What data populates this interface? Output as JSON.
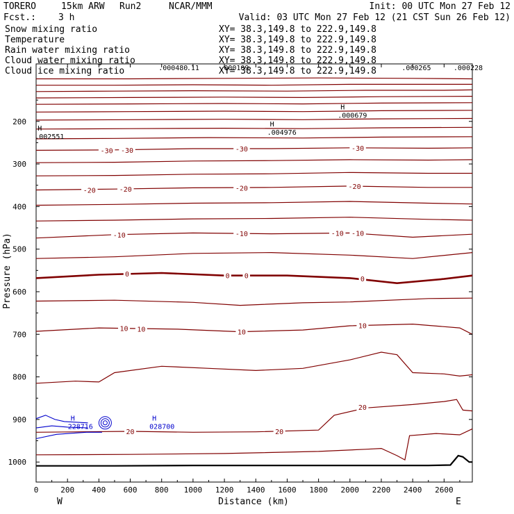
{
  "header": {
    "model": "TORERO",
    "resolution": "15km ARW",
    "run": "Run2",
    "org": "NCAR/MMM",
    "init": "Init: 00 UTC Mon 27 Feb 12",
    "fcst_label": "Fcst.:",
    "fcst_value": "3 h",
    "valid": "Valid: 03 UTC Mon 27 Feb 12 (21 CST Sun 26 Feb 12)"
  },
  "fields": [
    {
      "name": "Snow mixing ratio",
      "color": "#000000",
      "xy": "XY=  38.3,149.8 to 222.9,149.8"
    },
    {
      "name": "Temperature",
      "color": "#cc0000",
      "xy": "XY=  38.3,149.8 to 222.9,149.8"
    },
    {
      "name": "Rain water mixing ratio",
      "color": "#cc0000",
      "xy": "XY=  38.3,149.8 to 222.9,149.8"
    },
    {
      "name": "Cloud water mixing ratio",
      "color": "#0000cc",
      "xy": "XY=  38.3,149.8 to 222.9,149.8"
    },
    {
      "name": "Cloud ice mixing ratio",
      "color": "#000000",
      "xy": "XY=  38.3,149.8 to 222.9,149.8"
    }
  ],
  "colors": {
    "temperature": "#800000",
    "cloud_water": "#0000cc",
    "terrain": "#000000"
  },
  "chart_data": {
    "type": "cross-section",
    "xlabel": "Distance (km)",
    "ylabel": "Pressure (hPa)",
    "xlim": [
      0,
      2780
    ],
    "ylim": [
      1047,
      65
    ],
    "x_ticks": [
      0,
      200,
      400,
      600,
      800,
      1000,
      1200,
      1400,
      1600,
      1800,
      2000,
      2200,
      2400,
      2600
    ],
    "y_ticks": [
      200,
      300,
      400,
      500,
      600,
      700,
      800,
      900,
      1000
    ],
    "west_label": "W",
    "east_label": "E",
    "temperature_contours": [
      {
        "level": "",
        "pts": [
          [
            0,
            100
          ],
          [
            600,
            100
          ],
          [
            1200,
            99
          ],
          [
            1800,
            98
          ],
          [
            2400,
            99
          ],
          [
            2780,
            100
          ]
        ]
      },
      {
        "level": "",
        "pts": [
          [
            0,
            115
          ],
          [
            500,
            115
          ],
          [
            1000,
            114
          ],
          [
            1500,
            115
          ],
          [
            2000,
            113
          ],
          [
            2500,
            113
          ],
          [
            2780,
            113
          ]
        ]
      },
      {
        "level": "",
        "pts": [
          [
            0,
            130
          ],
          [
            500,
            129
          ],
          [
            1000,
            128
          ],
          [
            1600,
            129
          ],
          [
            2100,
            127
          ],
          [
            2600,
            127
          ],
          [
            2780,
            126
          ]
        ]
      },
      {
        "level": "",
        "pts": [
          [
            0,
            145
          ],
          [
            600,
            144
          ],
          [
            1200,
            143
          ],
          [
            1700,
            144
          ],
          [
            2200,
            142
          ],
          [
            2780,
            141
          ]
        ]
      },
      {
        "level": "",
        "pts": [
          [
            0,
            160
          ],
          [
            600,
            159
          ],
          [
            1200,
            158
          ],
          [
            1700,
            159
          ],
          [
            2200,
            157
          ],
          [
            2780,
            156
          ]
        ]
      },
      {
        "level": "",
        "pts": [
          [
            0,
            178
          ],
          [
            600,
            177
          ],
          [
            1200,
            176
          ],
          [
            1700,
            177
          ],
          [
            2200,
            175
          ],
          [
            2780,
            174
          ]
        ]
      },
      {
        "level": "",
        "pts": [
          [
            0,
            197
          ],
          [
            600,
            196
          ],
          [
            1200,
            195
          ],
          [
            1700,
            196
          ],
          [
            2200,
            194
          ],
          [
            2780,
            193
          ]
        ]
      },
      {
        "level": "",
        "pts": [
          [
            0,
            218
          ],
          [
            600,
            217
          ],
          [
            1200,
            216
          ],
          [
            1700,
            217
          ],
          [
            2200,
            215
          ],
          [
            2780,
            214
          ]
        ]
      },
      {
        "level": "",
        "pts": [
          [
            0,
            241
          ],
          [
            500,
            240
          ],
          [
            1100,
            238
          ],
          [
            1700,
            239
          ],
          [
            2200,
            237
          ],
          [
            2780,
            236
          ]
        ]
      },
      {
        "level": "-30",
        "pts": [
          [
            0,
            268
          ],
          [
            500,
            267
          ],
          [
            1000,
            264
          ],
          [
            1500,
            264
          ],
          [
            2000,
            262
          ],
          [
            2500,
            263
          ],
          [
            2780,
            262
          ]
        ]
      },
      {
        "level": "",
        "pts": [
          [
            0,
            297
          ],
          [
            500,
            296
          ],
          [
            1000,
            293
          ],
          [
            1500,
            292
          ],
          [
            2000,
            290
          ],
          [
            2500,
            291
          ],
          [
            2780,
            290
          ]
        ]
      },
      {
        "level": "",
        "pts": [
          [
            0,
            328
          ],
          [
            500,
            327
          ],
          [
            1000,
            324
          ],
          [
            1500,
            323
          ],
          [
            2000,
            320
          ],
          [
            2500,
            322
          ],
          [
            2780,
            322
          ]
        ]
      },
      {
        "level": "-20",
        "pts": [
          [
            0,
            361
          ],
          [
            500,
            359
          ],
          [
            1000,
            356
          ],
          [
            1500,
            355
          ],
          [
            2000,
            352
          ],
          [
            2500,
            355
          ],
          [
            2780,
            355
          ]
        ]
      },
      {
        "level": "",
        "pts": [
          [
            0,
            397
          ],
          [
            500,
            395
          ],
          [
            1000,
            392
          ],
          [
            1500,
            391
          ],
          [
            2000,
            388
          ],
          [
            2500,
            392
          ],
          [
            2780,
            394
          ]
        ]
      },
      {
        "level": "",
        "pts": [
          [
            0,
            434
          ],
          [
            500,
            432
          ],
          [
            1000,
            429
          ],
          [
            1500,
            428
          ],
          [
            2000,
            425
          ],
          [
            2500,
            430
          ],
          [
            2780,
            432
          ]
        ]
      },
      {
        "level": "-10",
        "pts": [
          [
            0,
            474
          ],
          [
            500,
            466
          ],
          [
            1000,
            462
          ],
          [
            1500,
            464
          ],
          [
            2000,
            462
          ],
          [
            2400,
            472
          ],
          [
            2780,
            465
          ]
        ]
      },
      {
        "level": "",
        "pts": [
          [
            0,
            522
          ],
          [
            500,
            518
          ],
          [
            1000,
            510
          ],
          [
            1500,
            508
          ],
          [
            2000,
            514
          ],
          [
            2400,
            522
          ],
          [
            2780,
            508
          ]
        ]
      },
      {
        "level": "0",
        "bold": true,
        "pts": [
          [
            0,
            568
          ],
          [
            400,
            560
          ],
          [
            800,
            556
          ],
          [
            1200,
            562
          ],
          [
            1600,
            562
          ],
          [
            2000,
            568
          ],
          [
            2300,
            580
          ],
          [
            2600,
            570
          ],
          [
            2780,
            562
          ]
        ]
      },
      {
        "level": "",
        "pts": [
          [
            0,
            622
          ],
          [
            500,
            620
          ],
          [
            1000,
            625
          ],
          [
            1300,
            632
          ],
          [
            1700,
            626
          ],
          [
            2000,
            624
          ],
          [
            2500,
            616
          ],
          [
            2780,
            615
          ]
        ]
      },
      {
        "level": "10",
        "pts": [
          [
            0,
            693
          ],
          [
            400,
            685
          ],
          [
            900,
            688
          ],
          [
            1300,
            694
          ],
          [
            1700,
            690
          ],
          [
            2000,
            680
          ],
          [
            2400,
            676
          ],
          [
            2700,
            685
          ],
          [
            2780,
            700
          ]
        ]
      },
      {
        "level": "",
        "pts": [
          [
            0,
            815
          ],
          [
            250,
            810
          ],
          [
            400,
            812
          ],
          [
            500,
            790
          ],
          [
            800,
            775
          ],
          [
            1100,
            780
          ],
          [
            1400,
            785
          ],
          [
            1700,
            780
          ],
          [
            2000,
            760
          ],
          [
            2200,
            742
          ],
          [
            2300,
            748
          ],
          [
            2400,
            790
          ],
          [
            2600,
            793
          ],
          [
            2700,
            798
          ],
          [
            2780,
            795
          ]
        ]
      },
      {
        "level": "20",
        "pts": [
          [
            0,
            930
          ],
          [
            600,
            928
          ],
          [
            1000,
            930
          ],
          [
            1400,
            929
          ],
          [
            1800,
            925
          ],
          [
            1900,
            890
          ],
          [
            2100,
            873
          ],
          [
            2400,
            865
          ],
          [
            2600,
            858
          ],
          [
            2680,
            853
          ],
          [
            2720,
            878
          ],
          [
            2780,
            880
          ]
        ]
      },
      {
        "level": "",
        "pts": [
          [
            0,
            983
          ],
          [
            600,
            982
          ],
          [
            1200,
            980
          ],
          [
            1800,
            975
          ],
          [
            2100,
            970
          ],
          [
            2200,
            968
          ],
          [
            2300,
            985
          ],
          [
            2350,
            995
          ],
          [
            2380,
            938
          ],
          [
            2550,
            933
          ],
          [
            2700,
            936
          ],
          [
            2780,
            922
          ]
        ]
      }
    ],
    "contour_labels": [
      {
        "text": "-30",
        "x": 450,
        "p": 268
      },
      {
        "text": "-30",
        "x": 580,
        "p": 267
      },
      {
        "text": "-30",
        "x": 1310,
        "p": 264
      },
      {
        "text": "-30",
        "x": 2050,
        "p": 262
      },
      {
        "text": "-20",
        "x": 340,
        "p": 361
      },
      {
        "text": "-20",
        "x": 570,
        "p": 359
      },
      {
        "text": "-20",
        "x": 1310,
        "p": 356
      },
      {
        "text": "-20",
        "x": 2030,
        "p": 352
      },
      {
        "text": "-10",
        "x": 530,
        "p": 466
      },
      {
        "text": "-10",
        "x": 1310,
        "p": 463
      },
      {
        "text": "-10",
        "x": 1920,
        "p": 462
      },
      {
        "text": "-10",
        "x": 2050,
        "p": 462
      },
      {
        "text": "0",
        "x": 580,
        "p": 558
      },
      {
        "text": "0",
        "x": 1220,
        "p": 562
      },
      {
        "text": "0",
        "x": 1340,
        "p": 562
      },
      {
        "text": "0",
        "x": 2080,
        "p": 569
      },
      {
        "text": "10",
        "x": 560,
        "p": 686
      },
      {
        "text": "10",
        "x": 670,
        "p": 687
      },
      {
        "text": "10",
        "x": 1310,
        "p": 694
      },
      {
        "text": "10",
        "x": 2080,
        "p": 679
      },
      {
        "text": "20",
        "x": 600,
        "p": 928
      },
      {
        "text": "20",
        "x": 1550,
        "p": 928
      },
      {
        "text": "20",
        "x": 2080,
        "p": 871
      }
    ],
    "cloud_water_contours": [
      {
        "pts": [
          [
            0,
            898
          ],
          [
            60,
            890
          ],
          [
            120,
            900
          ],
          [
            180,
            905
          ],
          [
            330,
            908
          ]
        ]
      },
      {
        "pts": [
          [
            0,
            945
          ],
          [
            130,
            935
          ],
          [
            320,
            930
          ],
          [
            420,
            930
          ]
        ]
      },
      {
        "pts": [
          [
            0,
            920
          ],
          [
            100,
            915
          ],
          [
            200,
            918
          ],
          [
            330,
            920
          ]
        ]
      }
    ],
    "cloud_water_rings": [
      {
        "x": 440,
        "p": 908
      }
    ],
    "terrain": [
      [
        0,
        1009
      ],
      [
        500,
        1009
      ],
      [
        1000,
        1008
      ],
      [
        1500,
        1008
      ],
      [
        2000,
        1008
      ],
      [
        2500,
        1008
      ],
      [
        2640,
        1007
      ],
      [
        2690,
        985
      ],
      [
        2720,
        988
      ],
      [
        2760,
        1000
      ],
      [
        2780,
        1000
      ]
    ],
    "extrema": [
      {
        "mark": "H",
        "value": ".002551",
        "x": 10,
        "p": 222,
        "color": "#000000"
      },
      {
        "mark": "H",
        "value": ".004976",
        "x": 1490,
        "p": 212,
        "color": "#000000"
      },
      {
        "mark": "H",
        "value": ".000679",
        "x": 1940,
        "p": 172,
        "color": "#000000"
      },
      {
        "mark": "H",
        "value": "228716",
        "x": 220,
        "p": 903,
        "color": "#0000cc"
      },
      {
        "mark": "H",
        "value": "028700",
        "x": 740,
        "p": 903,
        "color": "#0000cc"
      }
    ],
    "top_values": [
      {
        "text": ".000480",
        "x": 780
      },
      {
        "text": ".11",
        "x": 960
      },
      {
        "text": ".000109",
        "x": 1170
      },
      {
        "text": ".000265",
        "x": 2330
      },
      {
        "text": ".000228",
        "x": 2660
      }
    ]
  }
}
